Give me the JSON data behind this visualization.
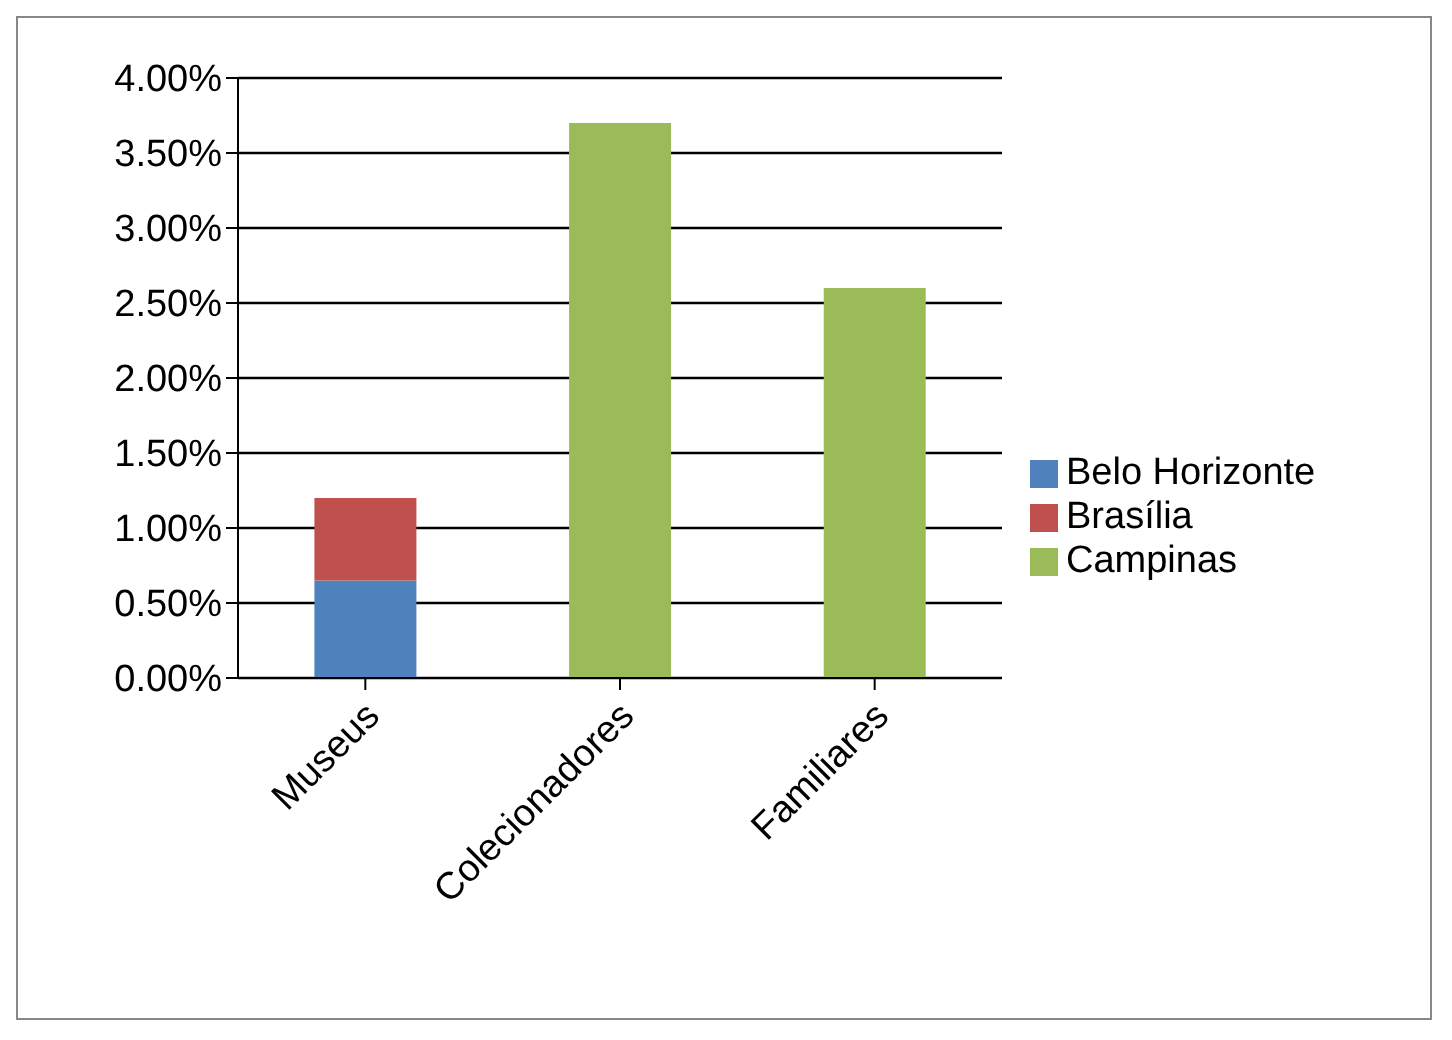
{
  "chart_data": {
    "type": "bar",
    "stacked": true,
    "categories": [
      "Museus",
      "Colecionadores",
      "Familiares"
    ],
    "series": [
      {
        "name": "Belo Horizonte",
        "color": "#4f81bd",
        "values": [
          0.65,
          null,
          null
        ]
      },
      {
        "name": "Brasília",
        "color": "#c0504d",
        "values": [
          0.55,
          null,
          null
        ]
      },
      {
        "name": "Campinas",
        "color": "#9bbb59",
        "values": [
          null,
          3.7,
          2.6
        ]
      }
    ],
    "ylim": [
      0,
      4
    ],
    "yticks": [
      {
        "value": 0,
        "label": "0.00%"
      },
      {
        "value": 0.5,
        "label": "0.50%"
      },
      {
        "value": 1,
        "label": "1.00%"
      },
      {
        "value": 1.5,
        "label": "1.50%"
      },
      {
        "value": 2,
        "label": "2.00%"
      },
      {
        "value": 2.5,
        "label": "2.50%"
      },
      {
        "value": 3,
        "label": "3.00%"
      },
      {
        "value": 3.5,
        "label": "3.50%"
      },
      {
        "value": 4,
        "label": "4.00%"
      }
    ],
    "grid": "y",
    "legend": "right"
  }
}
